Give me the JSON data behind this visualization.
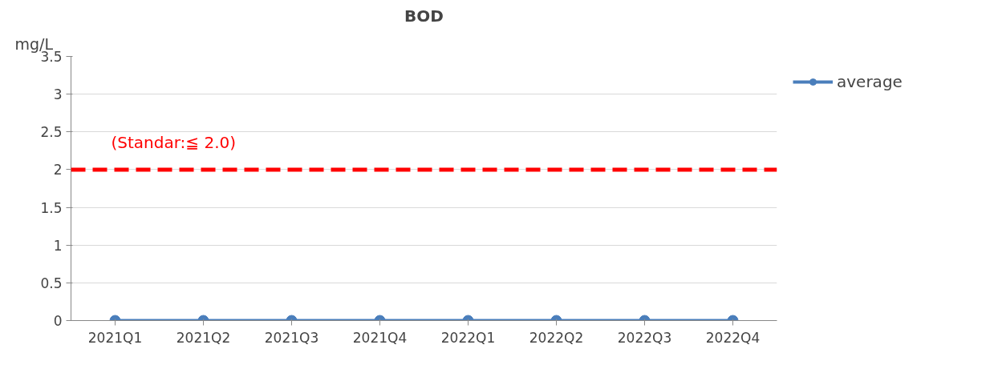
{
  "chart_data": {
    "type": "line",
    "title": "BOD",
    "ylabel": "mg/L",
    "categories": [
      "2021Q1",
      "2021Q2",
      "2021Q3",
      "2021Q4",
      "2022Q1",
      "2022Q2",
      "2022Q3",
      "2022Q4"
    ],
    "series": [
      {
        "name": "average",
        "color": "#4a7ebb",
        "values": [
          0,
          0,
          0,
          0,
          0,
          0,
          0,
          0
        ]
      }
    ],
    "ylim": [
      0,
      3.5
    ],
    "yticks": [
      0,
      0.5,
      1,
      1.5,
      2,
      2.5,
      3,
      3.5
    ],
    "ref_lines": [
      {
        "axis": "y",
        "value": 2.0,
        "label": "(Standar:≦ 2.0)",
        "color": "#ff0000",
        "line_style": "dashed"
      }
    ],
    "grid": "y",
    "legend": "right",
    "marker": "circle",
    "line_style": "solid"
  }
}
